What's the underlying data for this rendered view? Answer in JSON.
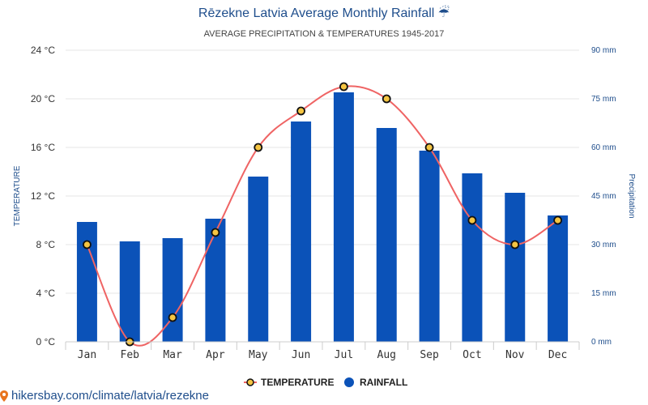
{
  "title": "Rēzekne Latvia Average Monthly Rainfall ☔",
  "subtitle": "AVERAGE PRECIPITATION & TEMPERATURES 1945-2017",
  "source": "hikersbay.com/climate/latvia/rezekne",
  "colors": {
    "bar": "#0b52b8",
    "line": "#ef6464",
    "marker_fill": "#f5c542",
    "marker_stroke": "#111111",
    "grid": "#e6e6e6",
    "axis_text": "#333333",
    "right_axis_text": "#1f4e8c"
  },
  "chart_data": {
    "type": "bar",
    "categories": [
      "Jan",
      "Feb",
      "Mar",
      "Apr",
      "May",
      "Jun",
      "Jul",
      "Aug",
      "Sep",
      "Oct",
      "Nov",
      "Dec"
    ],
    "series": [
      {
        "name": "TEMPERATURE",
        "type": "line",
        "axis": "left",
        "unit": "°C",
        "values": [
          8,
          0,
          2,
          9,
          16,
          19,
          21,
          20,
          16,
          10,
          8,
          10
        ]
      },
      {
        "name": "RAINFALL",
        "type": "bar",
        "axis": "right",
        "unit": "mm",
        "values": [
          37,
          31,
          32,
          38,
          51,
          68,
          77,
          66,
          59,
          52,
          46,
          39
        ]
      }
    ],
    "ylabel": "TEMPERATURE",
    "y2label": "Precipitation",
    "ylim": [
      0,
      24
    ],
    "y2lim": [
      0,
      90
    ],
    "yticks": [
      "0 °C",
      "4 °C",
      "8 °C",
      "12 °C",
      "16 °C",
      "20 °C",
      "24 °C"
    ],
    "y2ticks": [
      "0 mm",
      "15 mm",
      "30 mm",
      "45 mm",
      "60 mm",
      "75 mm",
      "90 mm"
    ],
    "grid": true,
    "legend": "bottom-center"
  }
}
